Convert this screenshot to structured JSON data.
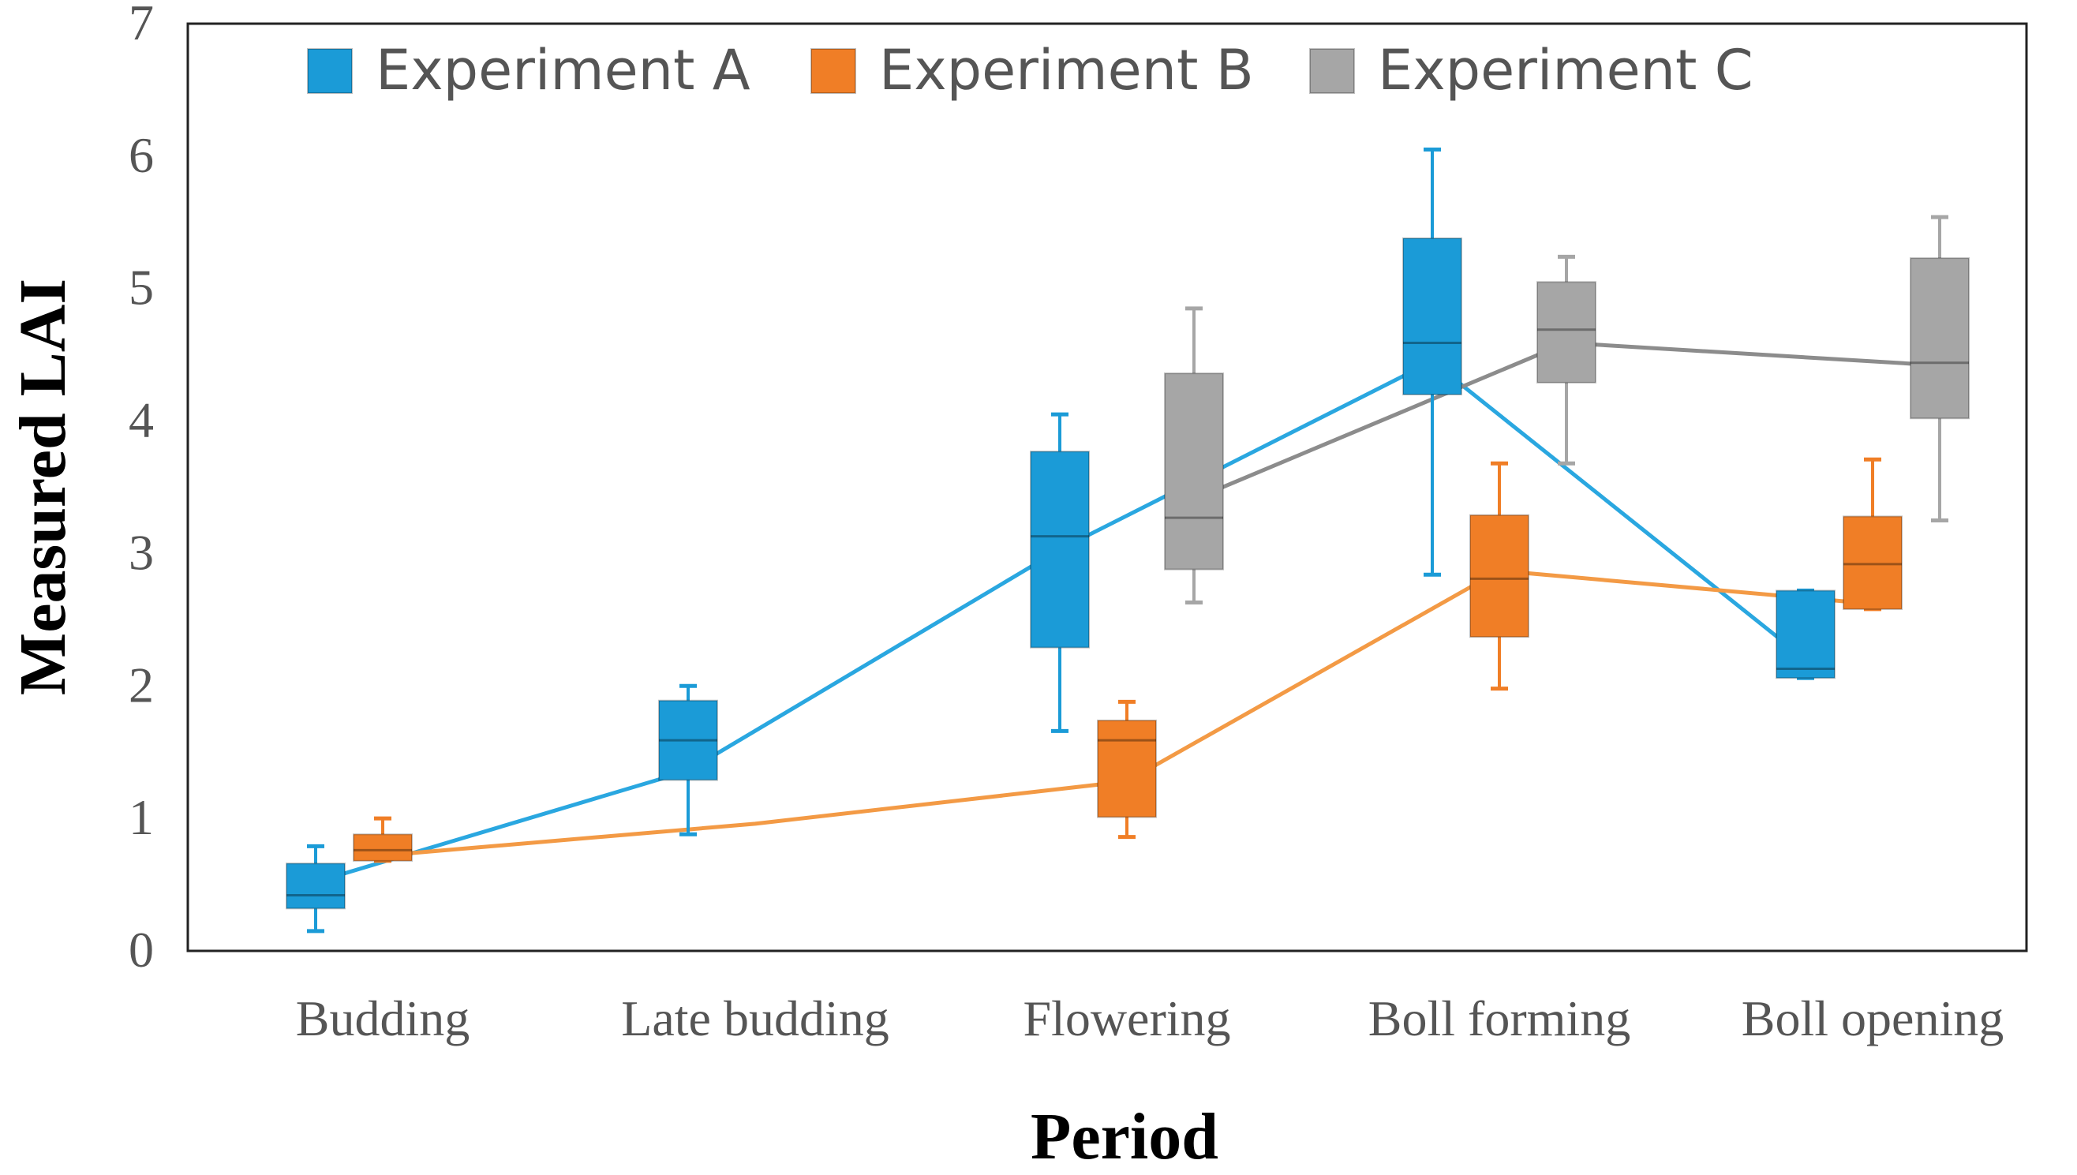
{
  "chart_data": {
    "type": "box",
    "ylabel": "Measured LAI",
    "xlabel": "Period",
    "ylim": [
      0,
      7
    ],
    "yticks": [
      "0",
      "1",
      "2",
      "3",
      "4",
      "5",
      "6",
      "7"
    ],
    "categories": [
      "Budding",
      "Late budding",
      "Flowering",
      "Boll forming",
      "Boll opening"
    ],
    "legend_position": "top",
    "grid": false,
    "series": [
      {
        "name": "Experiment A",
        "color": "#1B9BD7",
        "line_color": "#2AA7E0",
        "boxes": [
          {
            "category": "Budding",
            "min": 0.15,
            "q1": 0.32,
            "median": 0.42,
            "q3": 0.66,
            "max": 0.79
          },
          {
            "category": "Late budding",
            "min": 0.88,
            "q1": 1.29,
            "median": 1.59,
            "q3": 1.89,
            "max": 2.0
          },
          {
            "category": "Flowering",
            "min": 1.66,
            "q1": 2.29,
            "median": 3.13,
            "q3": 3.77,
            "max": 4.05
          },
          {
            "category": "Boll forming",
            "min": 2.84,
            "q1": 4.2,
            "median": 4.59,
            "q3": 5.38,
            "max": 6.05
          },
          {
            "category": "Boll opening",
            "min": 2.06,
            "q1": 2.06,
            "median": 2.13,
            "q3": 2.72,
            "max": 2.72
          }
        ],
        "mean_line": [
          0.52,
          1.36,
          3.03,
          4.45,
          2.2
        ]
      },
      {
        "name": "Experiment B",
        "color": "#F07E26",
        "line_color": "#F39A45",
        "boxes": [
          {
            "category": "Budding",
            "min": 0.68,
            "q1": 0.68,
            "median": 0.76,
            "q3": 0.88,
            "max": 1.0
          },
          {
            "category": "Flowering",
            "min": 0.86,
            "q1": 1.01,
            "median": 1.59,
            "q3": 1.74,
            "max": 1.88
          },
          {
            "category": "Boll forming",
            "min": 1.98,
            "q1": 2.37,
            "median": 2.81,
            "q3": 3.29,
            "max": 3.68
          },
          {
            "category": "Boll opening",
            "min": 2.58,
            "q1": 2.58,
            "median": 2.92,
            "q3": 3.28,
            "max": 3.71
          }
        ],
        "mean_line": [
          0.72,
          0.96,
          1.28,
          2.87,
          2.62
        ]
      },
      {
        "name": "Experiment C",
        "color": "#A6A6A6",
        "line_color": "#8C8C8C",
        "boxes": [
          {
            "category": "Flowering",
            "min": 2.63,
            "q1": 2.88,
            "median": 3.27,
            "q3": 4.36,
            "max": 4.85
          },
          {
            "category": "Boll forming",
            "min": 3.68,
            "q1": 4.29,
            "median": 4.69,
            "q3": 5.05,
            "max": 5.24
          },
          {
            "category": "Boll opening",
            "min": 3.25,
            "q1": 4.02,
            "median": 4.44,
            "q3": 5.23,
            "max": 5.54
          }
        ],
        "mean_line": [
          null,
          null,
          3.41,
          4.59,
          4.42
        ]
      }
    ]
  }
}
